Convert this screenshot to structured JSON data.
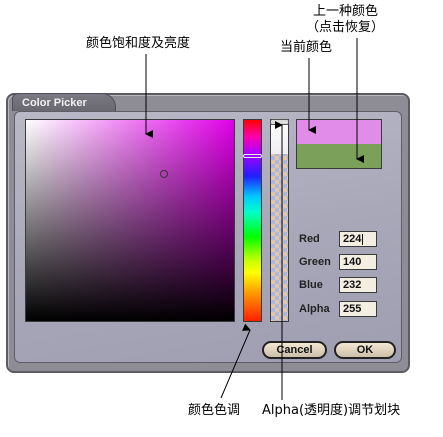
{
  "annotations": {
    "saturation_brightness": "颜色饱和度及亮度",
    "current_color": "当前颜色",
    "previous_color_line1": "上一种颜色",
    "previous_color_line2": "（点击恢复）",
    "hue": "颜色色调",
    "alpha_slider": "Alpha(透明度)调节划块"
  },
  "dialog": {
    "title": "Color Picker",
    "fields": {
      "red_label": "Red",
      "red_value": "224",
      "green_label": "Green",
      "green_value": "140",
      "blue_label": "Blue",
      "blue_value": "232",
      "alpha_label": "Alpha",
      "alpha_value": "255"
    },
    "cancel_label": "Cancel",
    "ok_label": "OK"
  },
  "colors": {
    "current": "#e08ce8",
    "previous": "#7aa05a",
    "selected_hue": "#e000e8"
  }
}
